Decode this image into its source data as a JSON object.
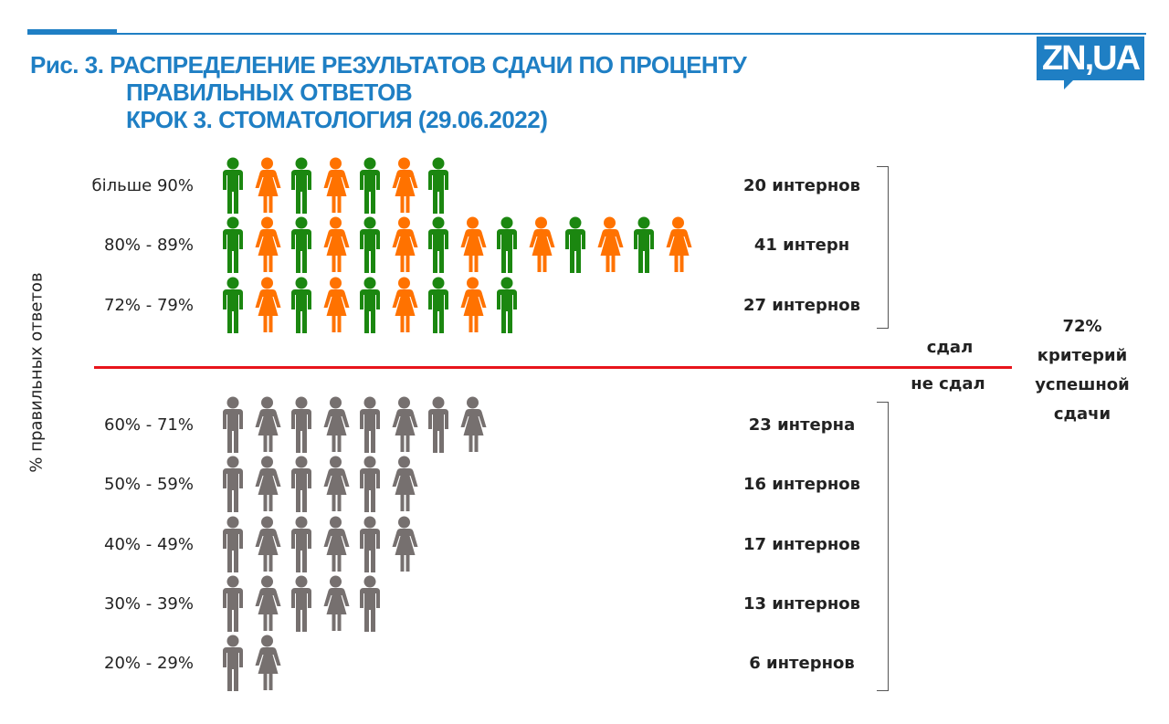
{
  "header": {
    "title_lines": [
      "Рис. 3. РАСПРЕДЕЛЕНИЕ РЕЗУЛЬТАТОВ СДАЧИ ПО ПРОЦЕНТУ",
      "ПРАВИЛЬНЫХ ОТВЕТОВ",
      "КРОК 3. СТОМАТОЛОГИЯ (29.06.2022)"
    ],
    "logo": "ZN,UA"
  },
  "colors": {
    "accent": "#1f7fc4",
    "passed_male": "#1b8710",
    "passed_female": "#ff7200",
    "failed": "#76706f",
    "threshold_line": "#e8141b"
  },
  "chart_data": {
    "type": "bar",
    "title": "Рис. 3. РАСПРЕДЕЛЕНИЕ РЕЗУЛЬТАТОВ СДАЧИ ПО ПРОЦЕНТУ ПРАВИЛЬНЫХ ОТВЕТОВ КРОК 3. СТОМАТОЛОГИЯ (29.06.2022)",
    "ylabel": "% правильных ответов",
    "categories": [
      "більше 90%",
      "80% - 89%",
      "72% - 79%",
      "60% - 71%",
      "50% - 59%",
      "40% - 49%",
      "30% - 39%",
      "20% - 29%"
    ],
    "values": [
      20,
      41,
      27,
      23,
      16,
      17,
      13,
      6
    ],
    "value_labels": [
      "20 интернов",
      "41 интерн",
      "27 интернов",
      "23 интерна",
      "16 интернов",
      "17 интернов",
      "13 интернов",
      "6 интернов"
    ],
    "icons_shown": [
      7,
      14,
      9,
      8,
      6,
      6,
      5,
      2
    ],
    "passed": [
      true,
      true,
      true,
      false,
      false,
      false,
      false,
      false
    ],
    "threshold": {
      "passed_label": "сдал",
      "failed_label": "не сдал",
      "note_lines": [
        "72%",
        "критерий",
        "успешной",
        "сдачи"
      ]
    }
  }
}
